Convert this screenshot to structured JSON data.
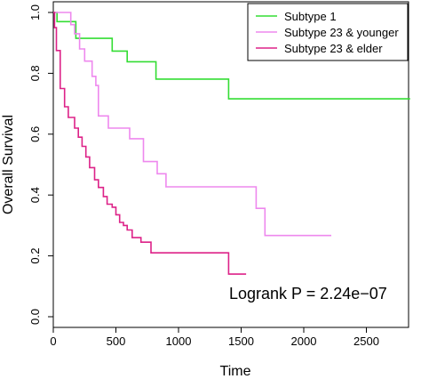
{
  "chart_data": {
    "type": "line",
    "step": true,
    "xlabel": "Time",
    "ylabel": "Overall Survival",
    "xlim": [
      0,
      2900
    ],
    "ylim": [
      0,
      1.0
    ],
    "x_ticks": [
      "0",
      "500",
      "1000",
      "1500",
      "2000",
      "2500"
    ],
    "x_tick_values": [
      0,
      500,
      1000,
      1500,
      2000,
      2500
    ],
    "y_ticks": [
      "0.0",
      "0.2",
      "0.4",
      "0.6",
      "0.8",
      "1.0"
    ],
    "y_tick_values": [
      0,
      0.2,
      0.4,
      0.6,
      0.8,
      1.0
    ],
    "legend_position": "top-right",
    "annotation": "Logrank P = 2.24e−07",
    "series": [
      {
        "name": "Subtype 1",
        "color": "#33dd33",
        "x": [
          0,
          30,
          180,
          470,
          590,
          820,
          1400,
          2850
        ],
        "y": [
          1.0,
          0.97,
          0.915,
          0.873,
          0.838,
          0.781,
          0.716,
          0.716
        ]
      },
      {
        "name": "Subtype 23 & younger",
        "color": "#ee88ee",
        "x": [
          0,
          140,
          170,
          210,
          250,
          310,
          340,
          360,
          440,
          610,
          720,
          830,
          900,
          1620,
          1690,
          2220
        ],
        "y": [
          1.0,
          0.96,
          0.93,
          0.88,
          0.84,
          0.79,
          0.76,
          0.66,
          0.62,
          0.585,
          0.51,
          0.47,
          0.427,
          0.356,
          0.267,
          0.267
        ]
      },
      {
        "name": "Subtype 23 & elder",
        "color": "#dd2288",
        "x": [
          0,
          10,
          25,
          55,
          90,
          120,
          170,
          200,
          230,
          260,
          290,
          330,
          360,
          400,
          430,
          470,
          500,
          530,
          560,
          590,
          630,
          700,
          780,
          820,
          1400,
          1540
        ],
        "y": [
          1.0,
          0.95,
          0.875,
          0.75,
          0.69,
          0.655,
          0.62,
          0.59,
          0.56,
          0.525,
          0.49,
          0.45,
          0.425,
          0.395,
          0.37,
          0.36,
          0.335,
          0.31,
          0.3,
          0.285,
          0.26,
          0.245,
          0.21,
          0.21,
          0.14,
          0.14
        ]
      }
    ]
  }
}
